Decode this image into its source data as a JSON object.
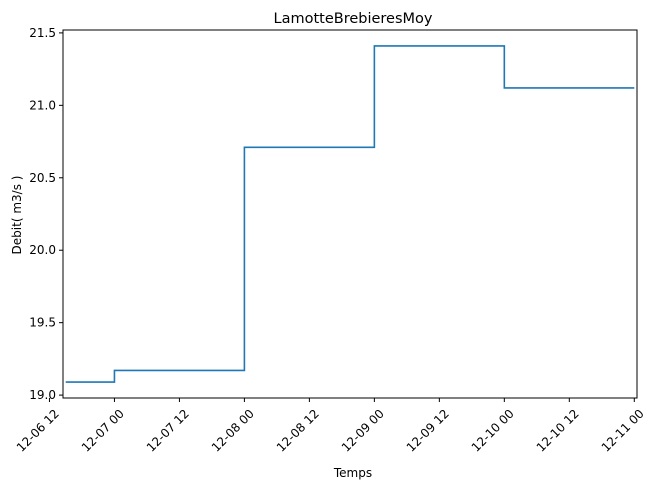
{
  "chart_data": {
    "type": "line",
    "drawstyle": "steps-post",
    "title": "LamotteBrebieresMoy",
    "xlabel": "Temps",
    "ylabel": "Debit( m3/s )",
    "x_unit": "hours since 12-06 00",
    "xlim": [
      14.5,
      120.5
    ],
    "ylim": [
      18.98,
      21.52
    ],
    "series": [
      {
        "color": "#1f77b4",
        "x": [
          15,
          24,
          48,
          72,
          96,
          120
        ],
        "y": [
          19.09,
          19.17,
          20.71,
          21.41,
          21.12,
          21.12
        ]
      }
    ],
    "x_ticks": [
      {
        "value": 12,
        "label": "12-06 12"
      },
      {
        "value": 24,
        "label": "12-07 00"
      },
      {
        "value": 36,
        "label": "12-07 12"
      },
      {
        "value": 48,
        "label": "12-08 00"
      },
      {
        "value": 60,
        "label": "12-08 12"
      },
      {
        "value": 72,
        "label": "12-09 00"
      },
      {
        "value": 84,
        "label": "12-09 12"
      },
      {
        "value": 96,
        "label": "12-10 00"
      },
      {
        "value": 108,
        "label": "12-10 12"
      },
      {
        "value": 120,
        "label": "12-11 00"
      }
    ],
    "y_ticks": [
      {
        "value": 19.0,
        "label": "19.0"
      },
      {
        "value": 19.5,
        "label": "19.5"
      },
      {
        "value": 20.0,
        "label": "20.0"
      },
      {
        "value": 20.5,
        "label": "20.5"
      },
      {
        "value": 21.0,
        "label": "21.0"
      },
      {
        "value": 21.5,
        "label": "21.5"
      }
    ],
    "grid": false,
    "legend": "none"
  }
}
